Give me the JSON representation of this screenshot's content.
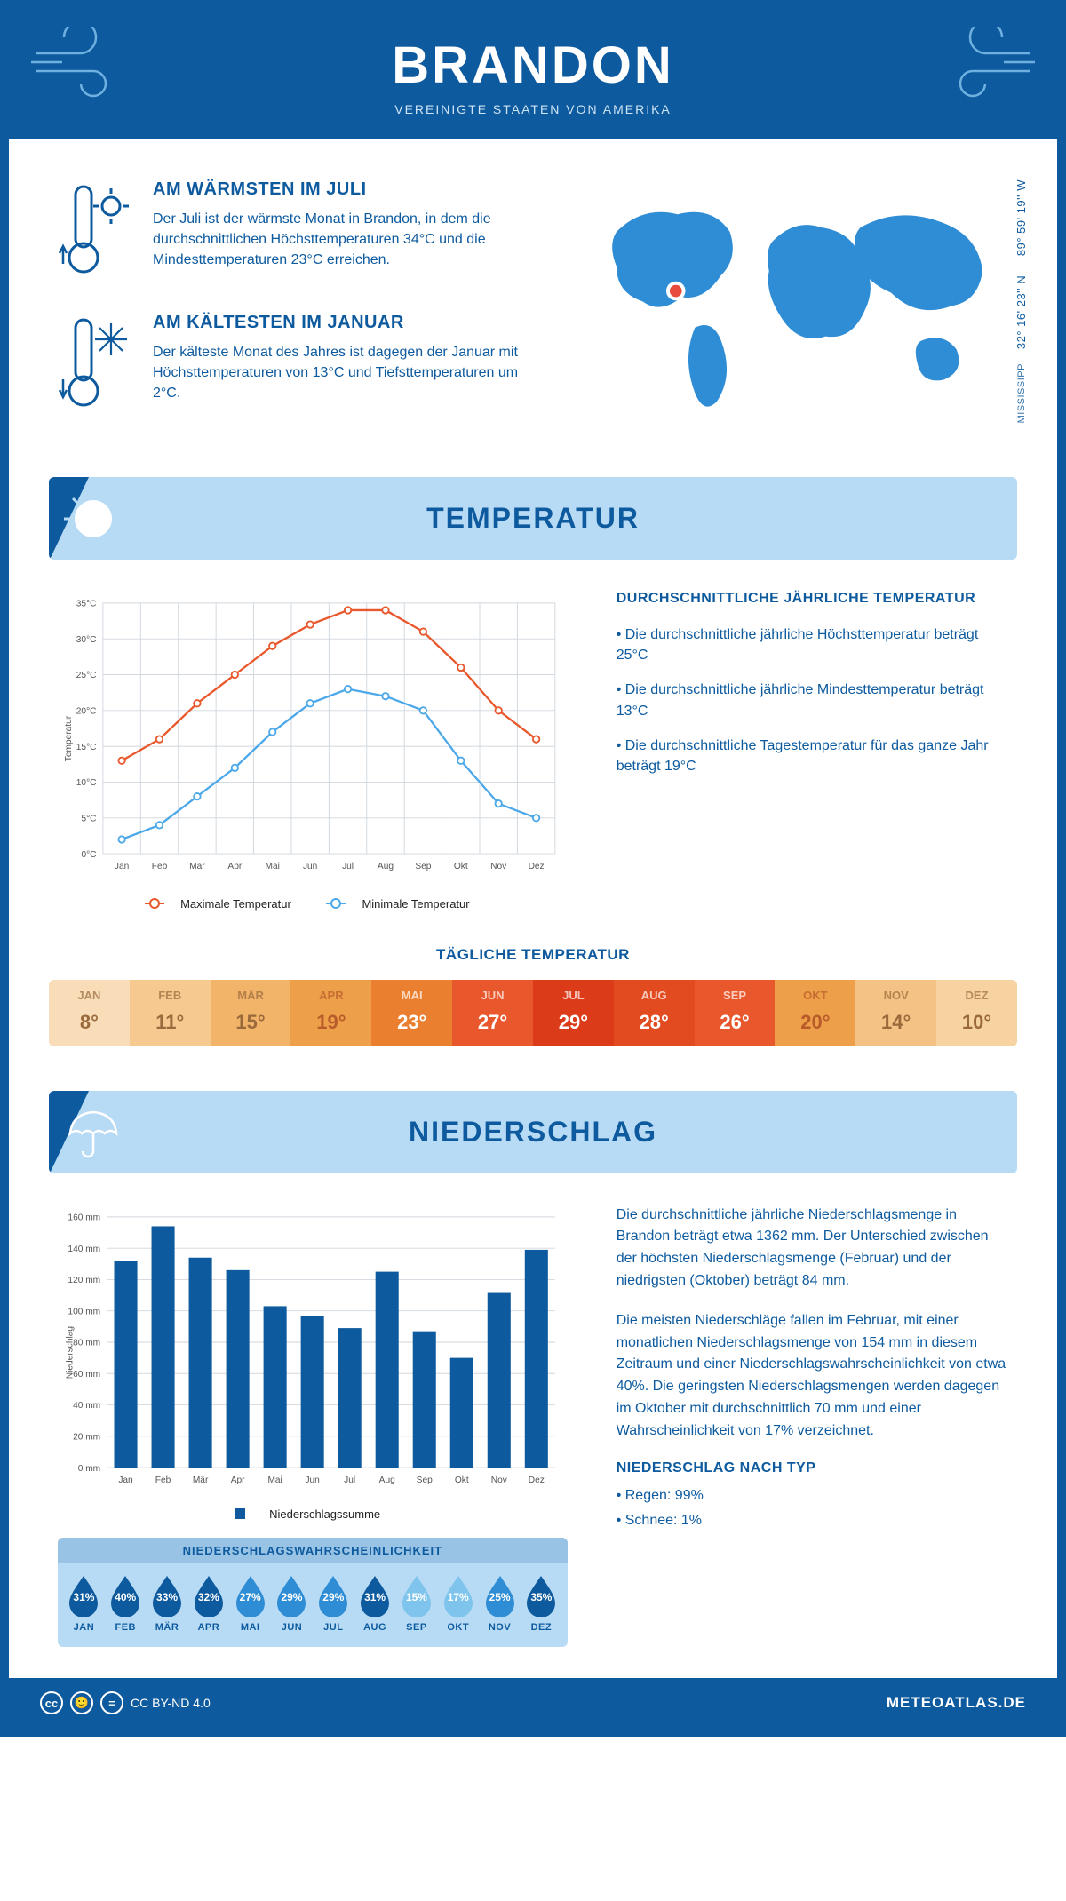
{
  "header": {
    "title": "BRANDON",
    "subtitle": "VEREINIGTE STAATEN VON AMERIKA"
  },
  "location": {
    "region": "MISSISSIPPI",
    "coords": "32° 16' 23'' N — 89° 59' 19'' W",
    "marker_color": "#e74c3c",
    "map_color": "#2f8dd6"
  },
  "warm": {
    "title": "AM WÄRMSTEN IM JULI",
    "text": "Der Juli ist der wärmste Monat in Brandon, in dem die durchschnittlichen Höchsttemperaturen 34°C und die Mindesttemperaturen 23°C erreichen."
  },
  "cold": {
    "title": "AM KÄLTESTEN IM JANUAR",
    "text": "Der kälteste Monat des Jahres ist dagegen der Januar mit Höchsttemperaturen von 13°C und Tiefsttemperaturen um 2°C."
  },
  "temp_section": {
    "title": "TEMPERATUR",
    "info_title": "DURCHSCHNITTLICHE JÄHRLICHE TEMPERATUR",
    "info1": "• Die durchschnittliche jährliche Höchsttemperatur beträgt 25°C",
    "info2": "• Die durchschnittliche jährliche Mindesttemperatur beträgt 13°C",
    "info3": "• Die durchschnittliche Tagestemperatur für das ganze Jahr beträgt 19°C",
    "legend_max": "Maximale Temperatur",
    "legend_min": "Minimale Temperatur",
    "daily_title": "TÄGLICHE TEMPERATUR"
  },
  "temp_chart": {
    "type": "line",
    "months": [
      "Jan",
      "Feb",
      "Mär",
      "Apr",
      "Mai",
      "Jun",
      "Jul",
      "Aug",
      "Sep",
      "Okt",
      "Nov",
      "Dez"
    ],
    "max_values": [
      13,
      16,
      21,
      25,
      29,
      32,
      34,
      34,
      31,
      26,
      20,
      16
    ],
    "min_values": [
      2,
      4,
      8,
      12,
      17,
      21,
      23,
      22,
      20,
      13,
      7,
      5
    ],
    "max_color": "#e8582c",
    "min_color": "#4ca8e8",
    "ylabel": "Temperatur",
    "ylim": [
      0,
      35
    ],
    "ytick_step": 5,
    "grid_color": "#d0d7de",
    "background_color": "#ffffff",
    "line_width": 2.5,
    "marker_radius": 4,
    "label_fontsize": 12
  },
  "heat_strip": {
    "months": [
      "JAN",
      "FEB",
      "MÄR",
      "APR",
      "MAI",
      "JUN",
      "JUL",
      "AUG",
      "SEP",
      "OKT",
      "NOV",
      "DEZ"
    ],
    "values": [
      "8°",
      "11°",
      "15°",
      "19°",
      "23°",
      "27°",
      "29°",
      "28°",
      "26°",
      "20°",
      "14°",
      "10°"
    ],
    "cell_colors": [
      "#f9dcb8",
      "#f6c990",
      "#f2b469",
      "#ee9f49",
      "#ea7f30",
      "#e8582c",
      "#dc3b1a",
      "#e24a20",
      "#e8582c",
      "#ee9f49",
      "#f4c284",
      "#f7d3a2"
    ],
    "text_colors": [
      "#9a6a3c",
      "#9a6a3c",
      "#9a6a3c",
      "#b85a2a",
      "#ffffff",
      "#ffffff",
      "#ffffff",
      "#ffffff",
      "#ffffff",
      "#b85a2a",
      "#9a6a3c",
      "#9a6a3c"
    ]
  },
  "precip_section": {
    "title": "NIEDERSCHLAG",
    "para1": "Die durchschnittliche jährliche Niederschlagsmenge in Brandon beträgt etwa 1362 mm. Der Unterschied zwischen der höchsten Niederschlagsmenge (Februar) und der niedrigsten (Oktober) beträgt 84 mm.",
    "para2": "Die meisten Niederschläge fallen im Februar, mit einer monatlichen Niederschlagsmenge von 154 mm in diesem Zeitraum und einer Niederschlagswahrscheinlichkeit von etwa 40%. Die geringsten Niederschlagsmengen werden dagegen im Oktober mit durchschnittlich 70 mm und einer Wahrscheinlichkeit von 17% verzeichnet.",
    "type_title": "NIEDERSCHLAG NACH TYP",
    "type1": "• Regen: 99%",
    "type2": "• Schnee: 1%"
  },
  "precip_chart": {
    "type": "bar",
    "months": [
      "Jan",
      "Feb",
      "Mär",
      "Apr",
      "Mai",
      "Jun",
      "Jul",
      "Aug",
      "Sep",
      "Okt",
      "Nov",
      "Dez"
    ],
    "values": [
      132,
      154,
      134,
      126,
      103,
      97,
      89,
      125,
      87,
      70,
      112,
      139
    ],
    "bar_color": "#0d5a9e",
    "ylabel": "Niederschlag",
    "ylim": [
      0,
      160
    ],
    "ytick_step": 20,
    "grid_color": "#d0d7de",
    "bar_width": 0.62,
    "legend": "Niederschlagssumme",
    "label_fontsize": 12
  },
  "prob": {
    "title": "NIEDERSCHLAGSWAHRSCHEINLICHKEIT",
    "months": [
      "JAN",
      "FEB",
      "MÄR",
      "APR",
      "MAI",
      "JUN",
      "JUL",
      "AUG",
      "SEP",
      "OKT",
      "NOV",
      "DEZ"
    ],
    "values": [
      "31%",
      "40%",
      "33%",
      "32%",
      "27%",
      "29%",
      "29%",
      "31%",
      "15%",
      "17%",
      "25%",
      "35%"
    ],
    "drop_colors": [
      "#0d5a9e",
      "#0d5a9e",
      "#0d5a9e",
      "#0d5a9e",
      "#2f8dd6",
      "#2f8dd6",
      "#2f8dd6",
      "#0d5a9e",
      "#7ec4ec",
      "#7ec4ec",
      "#2f8dd6",
      "#0d5a9e"
    ]
  },
  "footer": {
    "license": "CC BY-ND 4.0",
    "brand": "METEOATLAS.DE"
  },
  "colors": {
    "primary": "#0d5a9e",
    "band_bg": "#b8dbf5",
    "accent_light": "#6eb0e0"
  }
}
